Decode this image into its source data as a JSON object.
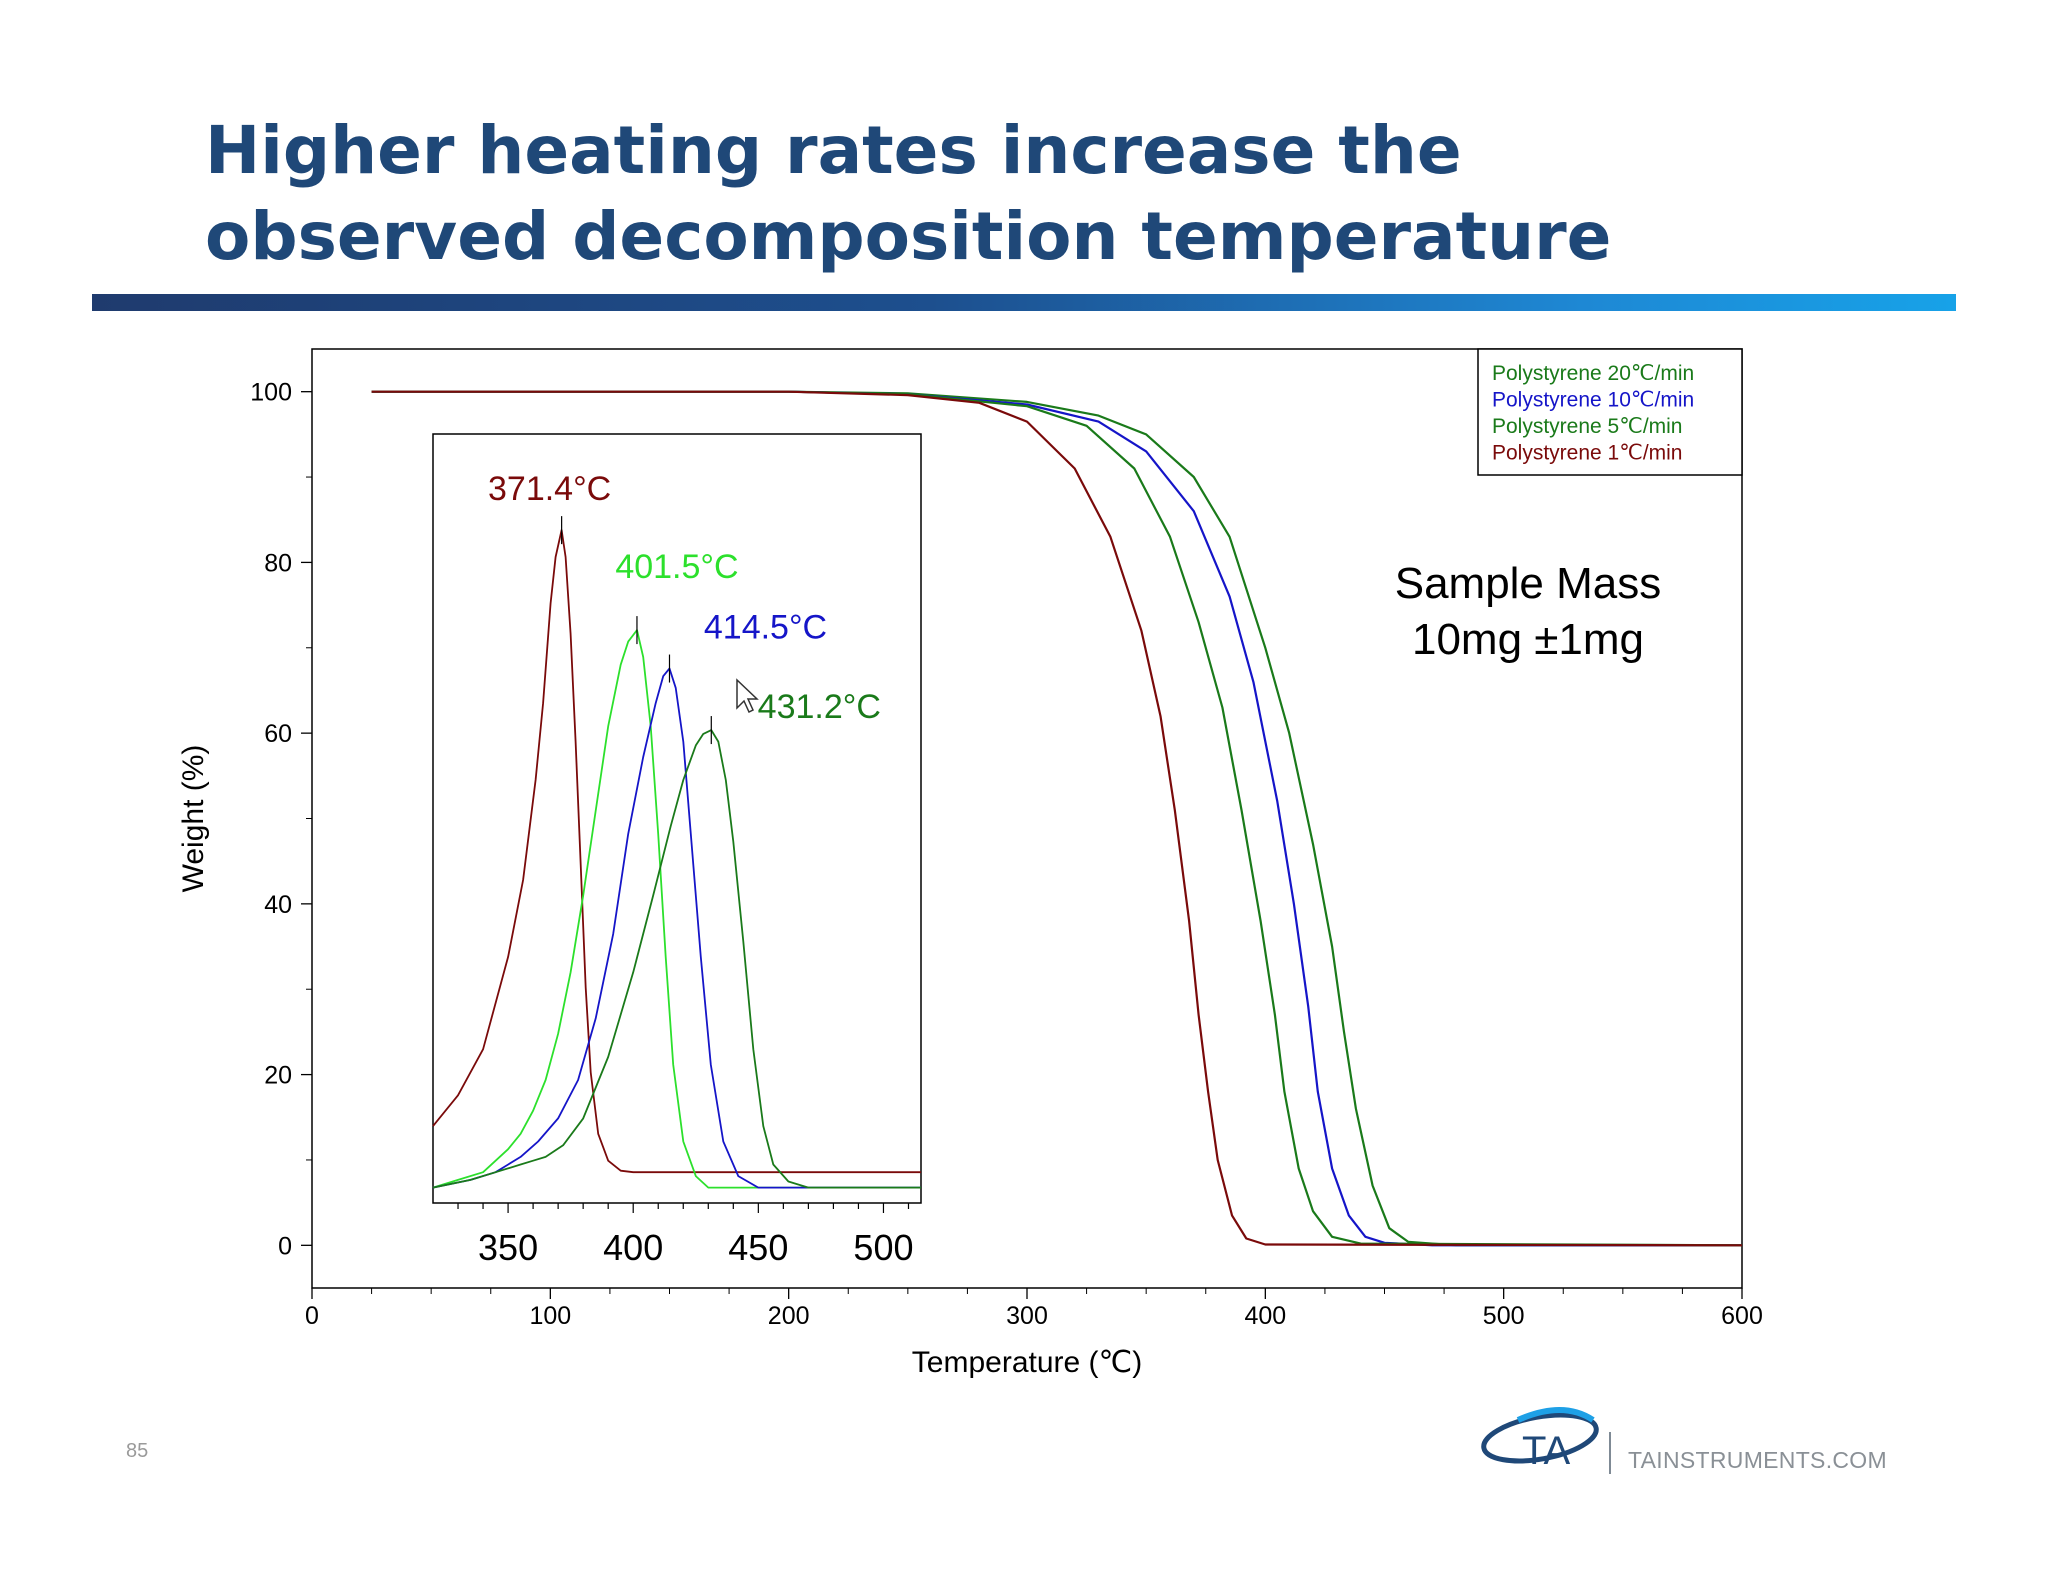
{
  "slide": {
    "title": "Higher heating rates increase the observed decomposition temperature",
    "page_number": "85",
    "website": "TAINSTRUMENTS.COM",
    "logo_text": "TA",
    "title_color": "#1f4878"
  },
  "chart_data": [
    {
      "type": "line",
      "title": "",
      "xlabel": "Temperature (℃)",
      "ylabel": "Weight (%)",
      "xlim": [
        0,
        600
      ],
      "ylim": [
        -5,
        105
      ],
      "xticks": [
        0,
        100,
        200,
        300,
        400,
        500,
        600
      ],
      "yticks": [
        0,
        20,
        40,
        60,
        80,
        100
      ],
      "grid": false,
      "legend_position": "top-right",
      "annotation": [
        "Sample Mass",
        "10mg ±1mg"
      ],
      "series": [
        {
          "name": "Polystyrene 20℃/min",
          "color": "#1a7a1a",
          "x": [
            25,
            100,
            200,
            250,
            300,
            330,
            350,
            370,
            385,
            400,
            410,
            420,
            428,
            433,
            438,
            445,
            452,
            460,
            480,
            600
          ],
          "y": [
            100,
            100,
            100,
            99.8,
            98.8,
            97.2,
            95,
            90,
            83,
            70,
            60,
            47,
            35,
            25,
            16,
            7,
            2,
            0.4,
            0,
            0
          ]
        },
        {
          "name": "Polystyrene 10℃/min",
          "color": "#1515c8",
          "x": [
            25,
            100,
            200,
            250,
            300,
            330,
            350,
            370,
            385,
            395,
            405,
            412,
            418,
            422,
            428,
            435,
            442,
            450,
            470,
            600
          ],
          "y": [
            100,
            100,
            100,
            99.7,
            98.5,
            96.5,
            93,
            86,
            76,
            66,
            52,
            40,
            28,
            18,
            9,
            3.5,
            1,
            0.3,
            0,
            0
          ]
        },
        {
          "name": "Polystyrene 5℃/min",
          "color": "#1a7a1a",
          "x": [
            25,
            100,
            200,
            250,
            300,
            325,
            345,
            360,
            372,
            382,
            390,
            398,
            404,
            408,
            414,
            420,
            428,
            440,
            600
          ],
          "y": [
            100,
            100,
            100,
            99.7,
            98.3,
            96,
            91,
            83,
            73,
            63,
            51,
            38,
            27,
            18,
            9,
            4,
            1,
            0.2,
            0
          ]
        },
        {
          "name": "Polystyrene 1℃/min",
          "color": "#7a0a0a",
          "x": [
            25,
            100,
            200,
            250,
            280,
            300,
            320,
            335,
            348,
            356,
            362,
            368,
            372,
            376,
            380,
            386,
            392,
            400,
            600
          ],
          "y": [
            100,
            100,
            100,
            99.6,
            98.7,
            96.5,
            91,
            83,
            72,
            62,
            51,
            38,
            27,
            18,
            10,
            3.5,
            0.8,
            0.1,
            0
          ]
        }
      ]
    },
    {
      "type": "line",
      "title": "",
      "xlabel": "",
      "ylabel": "",
      "xlim": [
        320,
        515
      ],
      "ylim": [
        0,
        100
      ],
      "xticks": [
        350,
        400,
        450,
        500
      ],
      "grid": false,
      "series": [
        {
          "color": "#7a0a0a",
          "peak_label": "371.4°C",
          "peak_x": 371.4,
          "x": [
            320,
            330,
            340,
            350,
            356,
            361,
            364,
            367,
            369,
            371.4,
            373,
            375,
            377,
            379,
            381,
            383,
            386,
            390,
            395,
            400,
            515
          ],
          "y": [
            10,
            14,
            20,
            32,
            42,
            55,
            65,
            78,
            84,
            87.5,
            84,
            74,
            60,
            44,
            28,
            17,
            9,
            5.5,
            4.2,
            4,
            4
          ]
        },
        {
          "color": "#2ce02c",
          "peak_label": "401.5°C",
          "peak_x": 401.5,
          "x": [
            320,
            330,
            340,
            345,
            350,
            355,
            360,
            365,
            370,
            375,
            380,
            385,
            390,
            395,
            398,
            401.5,
            404,
            407,
            410,
            413,
            416,
            420,
            425,
            430,
            515
          ],
          "y": [
            2,
            3,
            4,
            5.5,
            7,
            9,
            12,
            16,
            22,
            30,
            40,
            51,
            62,
            70,
            73,
            74.5,
            71,
            62,
            48,
            32,
            18,
            8,
            3.5,
            2,
            2
          ]
        },
        {
          "color": "#1515c8",
          "peak_label": "414.5°C",
          "peak_x": 414.5,
          "x": [
            320,
            335,
            345,
            355,
            362,
            370,
            378,
            385,
            392,
            398,
            404,
            409,
            412,
            414.5,
            417,
            420,
            423,
            427,
            431,
            436,
            442,
            450,
            460,
            515
          ],
          "y": [
            2,
            3,
            4,
            6,
            8,
            11,
            16,
            24,
            35,
            48,
            58,
            65,
            68.5,
            69.5,
            67,
            60,
            48,
            32,
            18,
            8,
            3.5,
            2,
            2,
            2
          ]
        },
        {
          "color": "#1a7a1a",
          "peak_label": "431.2°C",
          "peak_x": 431.2,
          "x": [
            320,
            335,
            345,
            355,
            360,
            365,
            372,
            380,
            390,
            400,
            408,
            415,
            420,
            425,
            428,
            431.2,
            434,
            437,
            440,
            444,
            448,
            452,
            456,
            462,
            470,
            515
          ],
          "y": [
            2,
            3,
            4,
            5,
            5.5,
            6,
            7.5,
            11,
            19,
            30,
            40,
            49,
            55,
            59.5,
            61,
            61.5,
            60,
            55,
            47,
            34,
            20,
            10,
            5,
            2.8,
            2,
            2
          ]
        }
      ]
    }
  ]
}
